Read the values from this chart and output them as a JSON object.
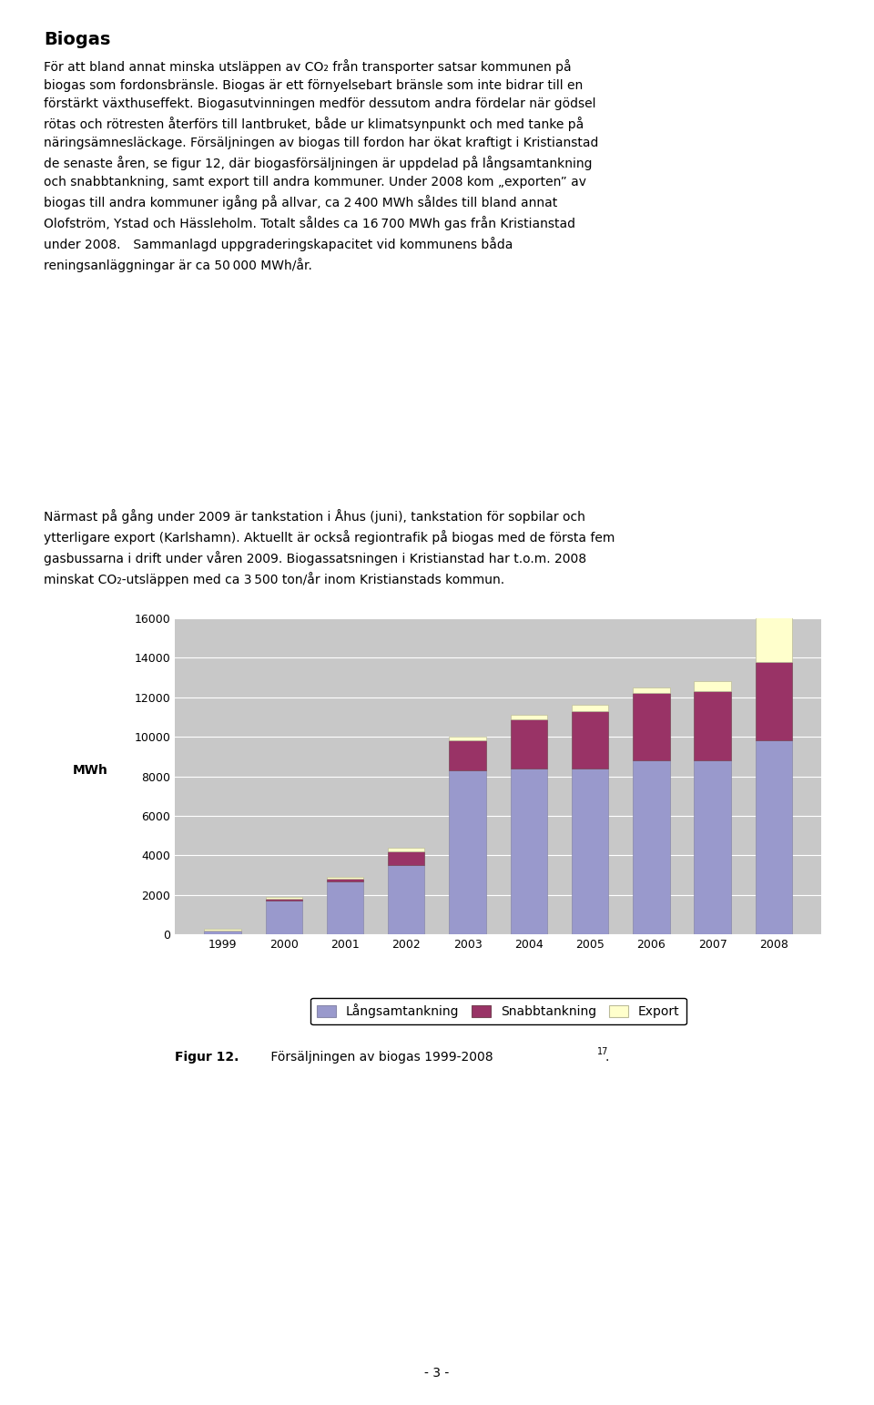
{
  "years": [
    "1999",
    "2000",
    "2001",
    "2002",
    "2003",
    "2004",
    "2005",
    "2006",
    "2007",
    "2008"
  ],
  "langsamtankning": [
    200,
    1700,
    2700,
    3500,
    8300,
    8400,
    8400,
    8800,
    8800,
    9800
  ],
  "snabbtankning": [
    0,
    100,
    100,
    700,
    1500,
    2500,
    2900,
    3400,
    3500,
    4000
  ],
  "export": [
    100,
    100,
    100,
    200,
    200,
    200,
    300,
    300,
    500,
    2500
  ],
  "color_langsamtankning": "#9999CC",
  "color_snabbtankning": "#993366",
  "color_export": "#FFFFCC",
  "ylabel": "MWh",
  "ylim": [
    0,
    16000
  ],
  "yticks": [
    0,
    2000,
    4000,
    6000,
    8000,
    10000,
    12000,
    14000,
    16000
  ],
  "legend_labels": [
    "Långsamtankning",
    "Snabbtankning",
    "Export"
  ],
  "plot_bg_color": "#C8C8C8",
  "title": "Biogas",
  "body_text_1": "För att bland annat minska utsläppen av CO₂ från transporter satsar kommunen på\nbiogas som fordonsbränsle. Biogas är ett förnyelsebart bränsle som inte bidrar till en\nförstärkt växthuseffekt. Biogasutvinningen medför dessutom andra fördelar när gödsel\nrötas och rötresten återförs till lantbruket, både ur klimatsynpunkt och med tanke på\nnäringsämnesläckage. Försäljningen av biogas till fordon har ökat kraftigt i Kristianstad\nde senaste åren, se figur 12, där biogasförsäljningen är uppdelad på långsamtankning\noch snabbtankning, samt export till andra kommuner. Under 2008 kom „exporten” av\nbiogas till andra kommuner igång på allvar, ca 2 400 MWh såldes till bland annat\nOlofström, Ystad och Hässleholm. Totalt såldes ca 16 700 MWh gas från Kristianstad\nunder 2008. Sammanlagd uppgraderingskapacitet vid kommunens båda\nreningsanläggningar är ca 50 000 MWh/år.",
  "body_text_2": "Närmast på gång under 2009 är tankstation i Åhus (juni), tankstation för sopbilar och\nytterligare export (Karlshamn). Aktuellt är också regiontrafik på biogas med de första fem\ngasbussarna i drift under våren 2009. Biogassatsningen i Kristianstad har t.o.m. 2008\nminskat CO₂-utsläppen med ca 3 500 ton/år inom Kristianstads kommun.",
  "fig_caption_bold": "Figur 12.",
  "fig_caption_normal": " Försäljningen av biogas 1999-2008",
  "fig_caption_super": "17",
  "page_number": "- 3 -"
}
